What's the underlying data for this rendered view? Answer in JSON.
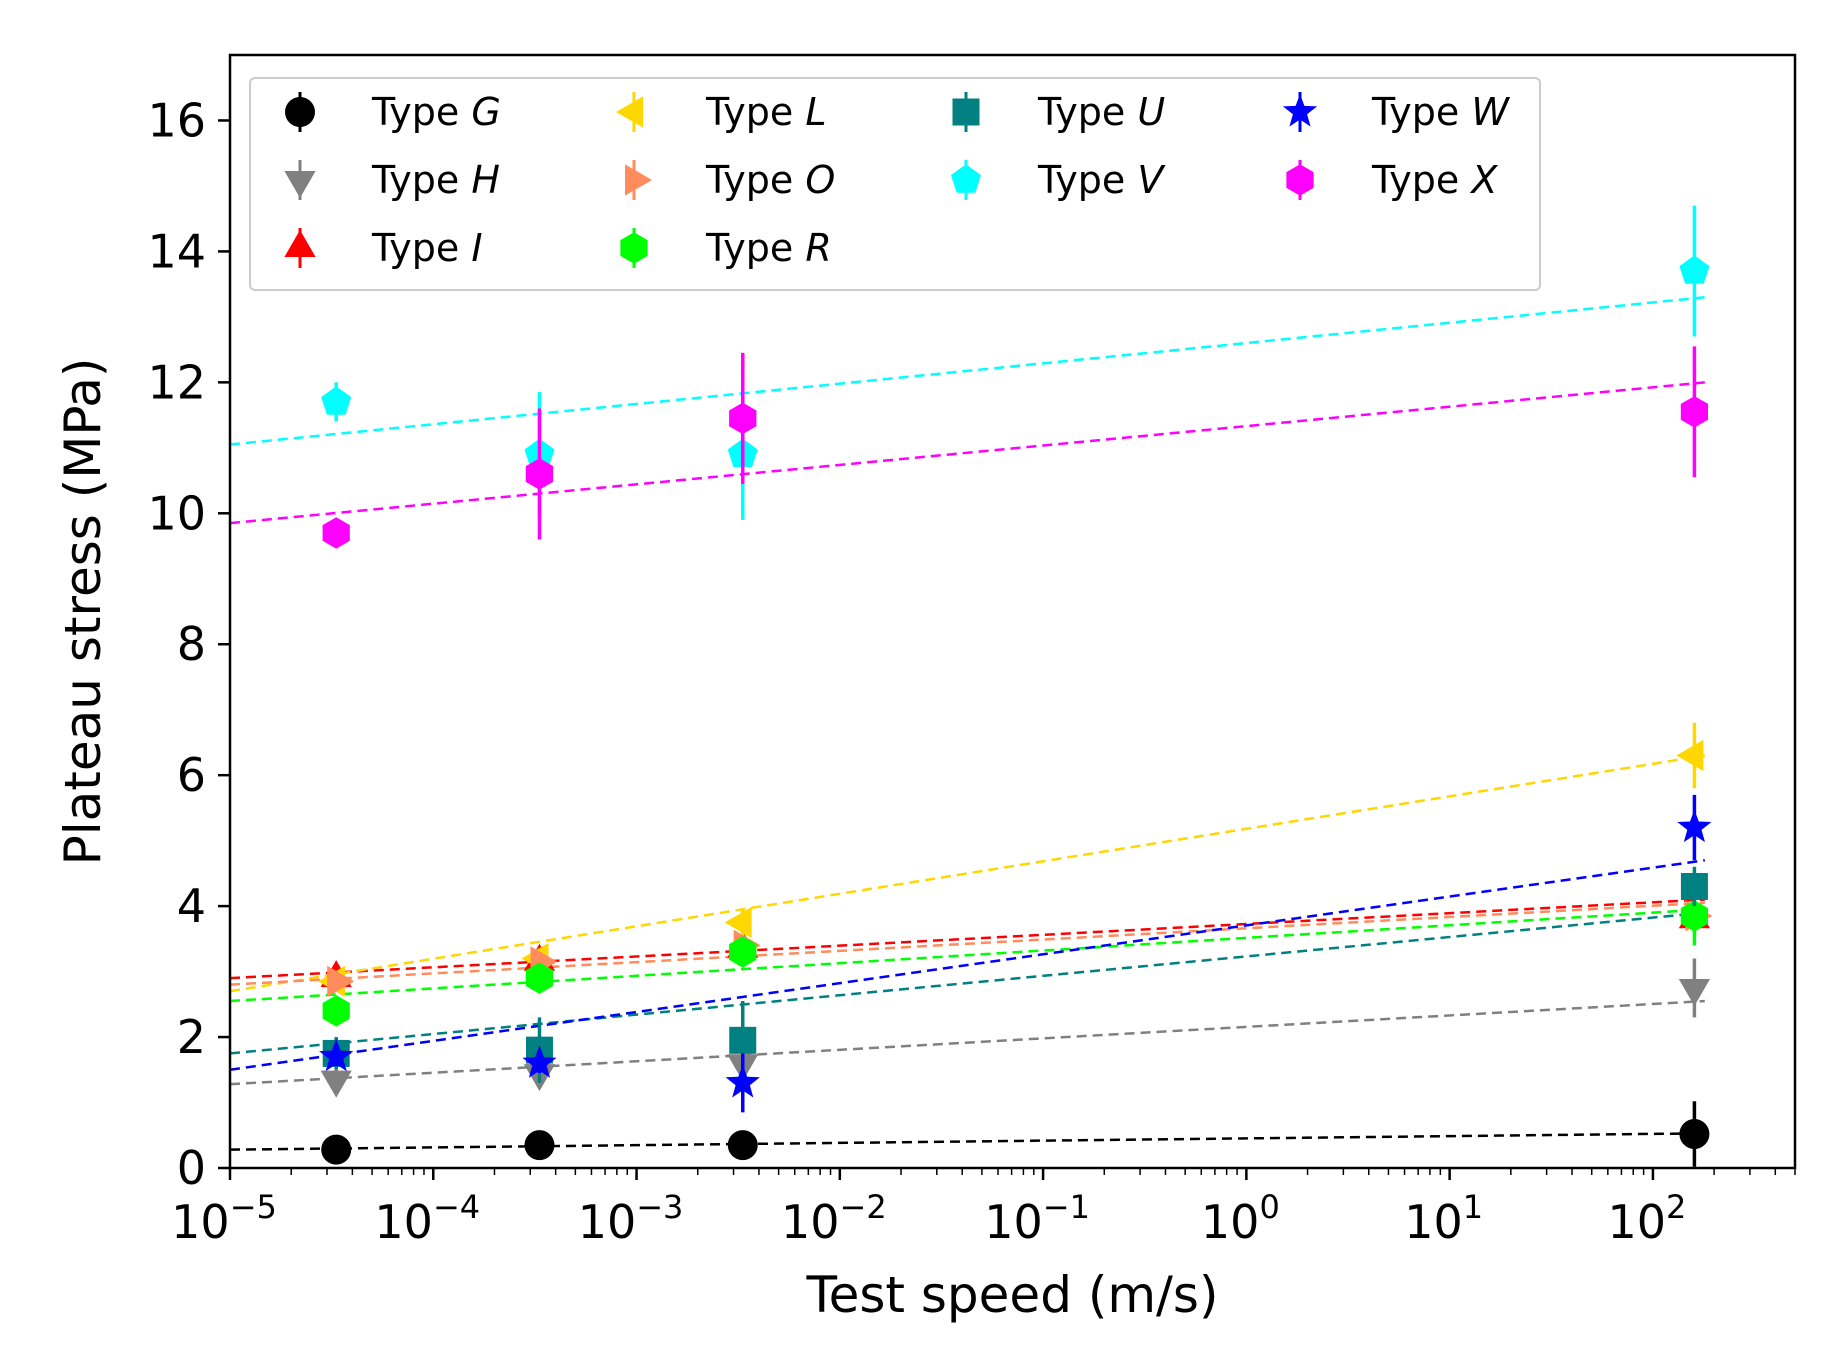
{
  "chart_data": {
    "type": "scatter",
    "title": "",
    "xlabel": "Test speed (m/s)",
    "ylabel": "Plateau stress (MPa)",
    "xscale": "log",
    "xlim": [
      1e-05,
      500
    ],
    "ylim": [
      0,
      17
    ],
    "x_ticks": [
      {
        "base": "10",
        "exp": "−5"
      },
      {
        "base": "10",
        "exp": "−4"
      },
      {
        "base": "10",
        "exp": "−3"
      },
      {
        "base": "10",
        "exp": "−2"
      },
      {
        "base": "10",
        "exp": "−1"
      },
      {
        "base": "10",
        "exp": "0"
      },
      {
        "base": "10",
        "exp": "1"
      },
      {
        "base": "10",
        "exp": "2"
      }
    ],
    "y_ticks": [
      "0",
      "2",
      "4",
      "6",
      "8",
      "10",
      "12",
      "14",
      "16"
    ],
    "legend_position": "top",
    "legend_prefix": "Type",
    "x": [
      3.33e-05,
      0.000333,
      0.00333,
      160
    ],
    "series": [
      {
        "name": "G",
        "color": "#000000",
        "marker": "circle",
        "values": [
          0.28,
          0.35,
          0.35,
          0.52
        ],
        "errors": [
          0.05,
          0.05,
          0.05,
          0.5
        ],
        "fit": [
          0.28,
          0.53
        ]
      },
      {
        "name": "H",
        "color": "#808080",
        "marker": "tri-down",
        "values": [
          1.35,
          1.45,
          1.6,
          2.75
        ],
        "errors": [
          0.15,
          0.15,
          0.15,
          0.45
        ],
        "fit": [
          1.28,
          2.55
        ]
      },
      {
        "name": "I",
        "color": "#ff0000",
        "marker": "tri-up",
        "values": [
          2.9,
          3.15,
          3.35,
          3.8
        ],
        "errors": [
          0.15,
          0.15,
          0.15,
          0.2
        ],
        "fit": [
          2.9,
          4.1
        ]
      },
      {
        "name": "L",
        "color": "#ffd700",
        "marker": "tri-left",
        "values": [
          2.85,
          3.2,
          3.75,
          6.3
        ],
        "errors": [
          0.15,
          0.15,
          0.2,
          0.5
        ],
        "fit": [
          2.7,
          6.3
        ]
      },
      {
        "name": "O",
        "color": "#ff8c5a",
        "marker": "tri-right",
        "values": [
          2.85,
          3.15,
          3.4,
          3.85
        ],
        "errors": [
          0.15,
          0.15,
          0.15,
          0.2
        ],
        "fit": [
          2.8,
          4.05
        ]
      },
      {
        "name": "R",
        "color": "#00ff00",
        "marker": "hexagon",
        "values": [
          2.4,
          2.9,
          3.3,
          3.85
        ],
        "errors": [
          0.15,
          0.15,
          0.15,
          0.45
        ],
        "fit": [
          2.55,
          3.95
        ]
      },
      {
        "name": "U",
        "color": "#008080",
        "marker": "square",
        "values": [
          1.75,
          1.8,
          1.95,
          4.3
        ],
        "errors": [
          0.25,
          0.5,
          0.6,
          0.3
        ],
        "fit": [
          1.75,
          3.9
        ]
      },
      {
        "name": "V",
        "color": "#00ffff",
        "marker": "pentagon",
        "values": [
          11.7,
          10.9,
          10.9,
          13.7
        ],
        "errors": [
          0.3,
          0.95,
          1.0,
          1.0
        ],
        "fit": [
          11.05,
          13.3
        ]
      },
      {
        "name": "W",
        "color": "#0000ff",
        "marker": "star",
        "values": [
          1.7,
          1.6,
          1.3,
          5.2
        ],
        "errors": [
          0.15,
          0.15,
          0.45,
          0.5
        ],
        "fit": [
          1.5,
          4.7
        ]
      },
      {
        "name": "X",
        "color": "#ff00ff",
        "marker": "hexagon",
        "values": [
          9.7,
          10.6,
          11.45,
          11.55
        ],
        "errors": [
          0.15,
          1.0,
          1.0,
          1.0
        ],
        "fit": [
          9.85,
          12.0
        ]
      }
    ],
    "fit_x": [
      1e-05,
      180
    ]
  }
}
